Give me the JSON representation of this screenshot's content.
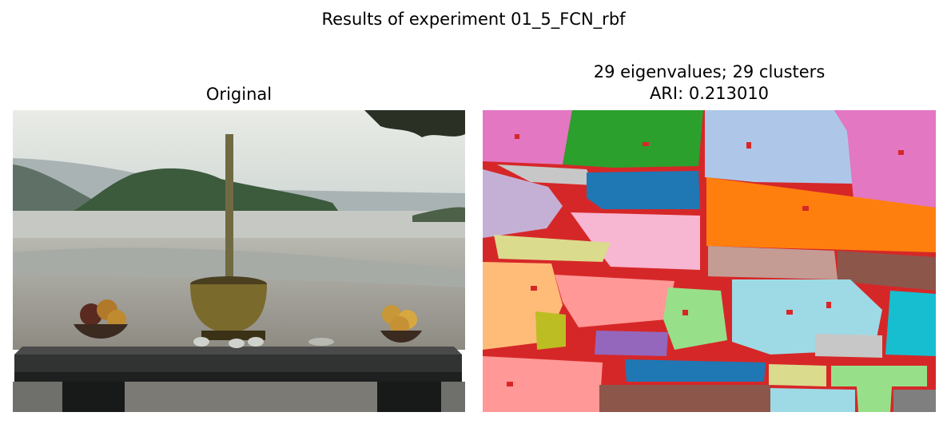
{
  "figure": {
    "title": "Results of experiment 01_5_FCN_rbf"
  },
  "panels": {
    "original": {
      "title": "Original"
    },
    "segmentation": {
      "title_line1": "29 eigenvalues; 29 clusters",
      "title_line2": "ARI: 0.213010"
    }
  },
  "colors": {
    "boundary_red": "#d62728",
    "cluster_palette": [
      "#1f77b4",
      "#aec7e8",
      "#ff7f0e",
      "#ffbb78",
      "#2ca02c",
      "#98df8a",
      "#d62728",
      "#ff9896",
      "#9467bd",
      "#c5b0d5",
      "#8c564b",
      "#c49c94",
      "#e377c2",
      "#f7b6d2",
      "#7f7f7f",
      "#c7c7c7",
      "#bcbd22",
      "#dbdb8d",
      "#17becf",
      "#9edae5"
    ]
  }
}
